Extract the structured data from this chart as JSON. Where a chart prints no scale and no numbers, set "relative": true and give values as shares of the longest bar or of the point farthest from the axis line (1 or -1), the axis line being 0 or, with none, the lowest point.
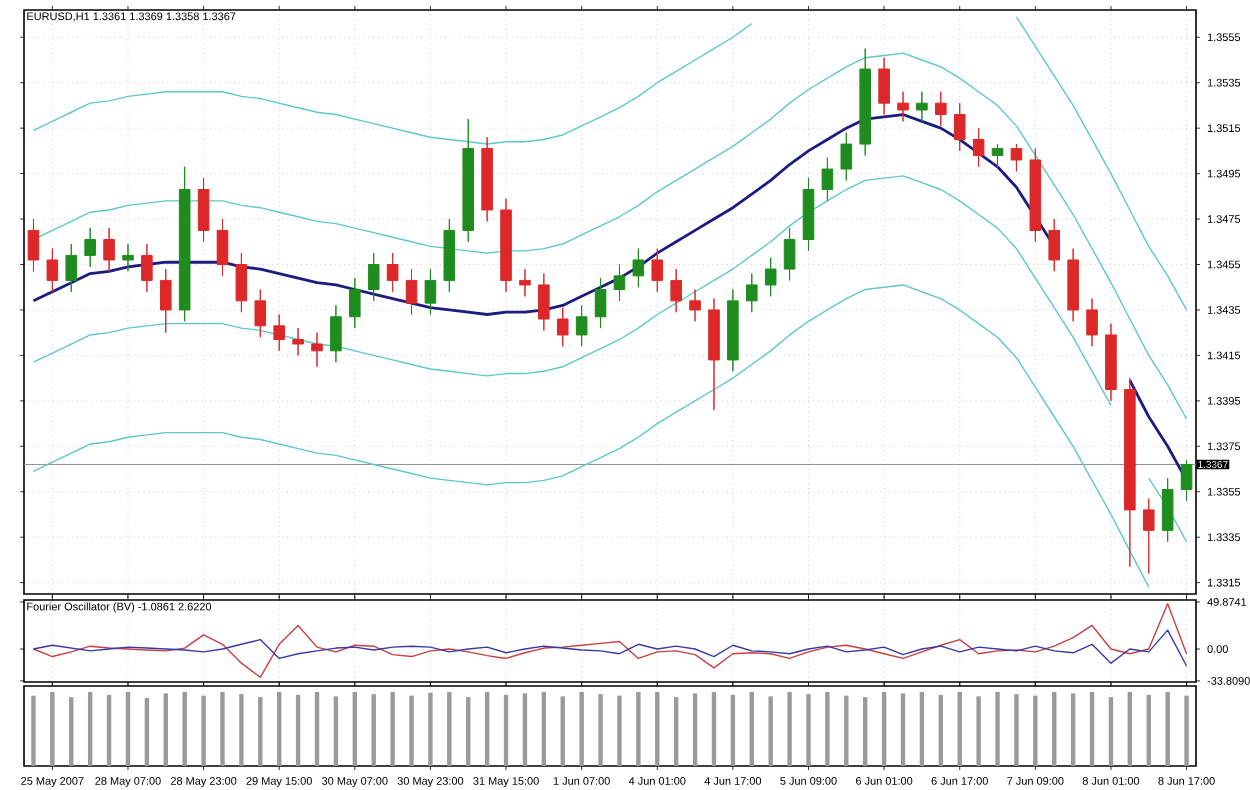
{
  "chart_data": [
    {
      "type": "candlestick",
      "title": "EURUSD,H1 1.3361 1.3369 1.3358 1.3367",
      "categories": [
        null,
        null,
        null,
        null,
        null,
        null,
        null,
        null,
        null,
        null,
        null,
        null,
        null,
        null,
        null,
        null,
        null,
        null,
        null,
        null,
        null,
        null,
        null,
        null,
        null,
        null,
        null,
        null,
        null,
        null,
        null,
        null,
        null,
        null,
        null,
        null,
        null,
        null,
        null,
        null,
        null,
        null,
        null,
        null,
        null,
        null,
        null,
        null,
        null,
        null,
        null,
        null,
        null,
        null,
        null,
        null,
        null,
        null,
        null,
        null,
        null,
        null
      ],
      "ohlc": [
        [
          1.347,
          1.3475,
          1.3452,
          1.3457
        ],
        [
          1.3457,
          1.3462,
          1.3443,
          1.3448
        ],
        [
          1.3448,
          1.3464,
          1.3443,
          1.3459
        ],
        [
          1.3459,
          1.3471,
          1.3454,
          1.3466
        ],
        [
          1.3466,
          1.3471,
          1.3452,
          1.3457
        ],
        [
          1.3457,
          1.3464,
          1.3452,
          1.3459
        ],
        [
          1.3459,
          1.3464,
          1.3443,
          1.3448
        ],
        [
          1.3448,
          1.3453,
          1.3425,
          1.3435
        ],
        [
          1.3435,
          1.3498,
          1.343,
          1.3488
        ],
        [
          1.3488,
          1.3493,
          1.3465,
          1.347
        ],
        [
          1.347,
          1.3475,
          1.345,
          1.3455
        ],
        [
          1.3455,
          1.346,
          1.3434,
          1.3439
        ],
        [
          1.3439,
          1.3444,
          1.3423,
          1.3428
        ],
        [
          1.3428,
          1.3433,
          1.3417,
          1.3422
        ],
        [
          1.3422,
          1.3427,
          1.3415,
          1.342
        ],
        [
          1.342,
          1.3425,
          1.341,
          1.3417
        ],
        [
          1.3417,
          1.3437,
          1.3412,
          1.3432
        ],
        [
          1.3432,
          1.3449,
          1.3427,
          1.3444
        ],
        [
          1.3444,
          1.346,
          1.3439,
          1.3455
        ],
        [
          1.3455,
          1.346,
          1.3443,
          1.3448
        ],
        [
          1.3448,
          1.3453,
          1.3433,
          1.3438
        ],
        [
          1.3438,
          1.3453,
          1.3433,
          1.3448
        ],
        [
          1.3448,
          1.3475,
          1.3443,
          1.347
        ],
        [
          1.347,
          1.3519,
          1.3465,
          1.3506
        ],
        [
          1.3506,
          1.3511,
          1.3474,
          1.3479
        ],
        [
          1.3479,
          1.3484,
          1.3443,
          1.3448
        ],
        [
          1.3448,
          1.3453,
          1.3441,
          1.3446
        ],
        [
          1.3446,
          1.3451,
          1.3426,
          1.3431
        ],
        [
          1.3431,
          1.3436,
          1.3419,
          1.3424
        ],
        [
          1.3424,
          1.3437,
          1.3419,
          1.3432
        ],
        [
          1.3432,
          1.3449,
          1.3427,
          1.3444
        ],
        [
          1.3444,
          1.3455,
          1.3439,
          1.345
        ],
        [
          1.345,
          1.3462,
          1.3445,
          1.3457
        ],
        [
          1.3457,
          1.3462,
          1.3443,
          1.3448
        ],
        [
          1.3448,
          1.3453,
          1.3434,
          1.3439
        ],
        [
          1.3439,
          1.3444,
          1.343,
          1.3435
        ],
        [
          1.3435,
          1.344,
          1.3391,
          1.3413
        ],
        [
          1.3413,
          1.3444,
          1.3408,
          1.3439
        ],
        [
          1.3439,
          1.3451,
          1.3434,
          1.3446
        ],
        [
          1.3446,
          1.3458,
          1.3441,
          1.3453
        ],
        [
          1.3453,
          1.3471,
          1.3448,
          1.3466
        ],
        [
          1.3466,
          1.3493,
          1.3461,
          1.3488
        ],
        [
          1.3488,
          1.3502,
          1.3483,
          1.3497
        ],
        [
          1.3497,
          1.3513,
          1.3492,
          1.3508
        ],
        [
          1.3508,
          1.355,
          1.3503,
          1.3541
        ],
        [
          1.3541,
          1.3546,
          1.3521,
          1.3526
        ],
        [
          1.3526,
          1.3531,
          1.3518,
          1.3523
        ],
        [
          1.3523,
          1.3531,
          1.3518,
          1.3526
        ],
        [
          1.3526,
          1.3531,
          1.3516,
          1.3521
        ],
        [
          1.3521,
          1.3526,
          1.3505,
          1.351
        ],
        [
          1.351,
          1.3515,
          1.3498,
          1.3503
        ],
        [
          1.3503,
          1.3508,
          1.3498,
          1.3506
        ],
        [
          1.3506,
          1.3508,
          1.3496,
          1.3501
        ],
        [
          1.3501,
          1.3506,
          1.3465,
          1.347
        ],
        [
          1.347,
          1.3475,
          1.3452,
          1.3457
        ],
        [
          1.3457,
          1.3462,
          1.343,
          1.3435
        ],
        [
          1.3435,
          1.344,
          1.3419,
          1.3424
        ],
        [
          1.3424,
          1.3429,
          1.3395,
          1.34
        ],
        [
          1.34,
          1.3405,
          1.3322,
          1.3347
        ],
        [
          1.3347,
          1.3352,
          1.3319,
          1.3338
        ],
        [
          1.3338,
          1.3361,
          1.3333,
          1.3356
        ],
        [
          1.3356,
          1.3369,
          1.3351,
          1.3367
        ]
      ],
      "series": [
        {
          "type": "line",
          "color": "#5ec8c8",
          "values": [
            1.3514,
            1.3518,
            1.3522,
            1.3526,
            1.3527,
            1.3529,
            1.353,
            1.3531,
            1.3531,
            1.3531,
            1.3531,
            1.3529,
            1.3528,
            1.3526,
            1.3524,
            1.3522,
            1.3521,
            1.3519,
            1.3517,
            1.3515,
            1.3513,
            1.3511,
            1.351,
            1.3509,
            1.3508,
            1.3509,
            1.3509,
            1.351,
            1.3512,
            1.3516,
            1.352,
            1.3524,
            1.3529,
            1.3535,
            1.354,
            1.3545,
            1.355,
            1.3555,
            1.3561,
            null,
            null,
            null,
            null,
            null,
            null,
            null,
            null,
            null,
            null,
            null,
            null,
            null,
            1.3564,
            1.3551,
            1.3538,
            1.3525,
            1.351,
            1.3495,
            1.3479,
            1.3463,
            1.345,
            1.3435
          ]
        },
        {
          "type": "line",
          "color": "#5ec8c8",
          "values": [
            1.3466,
            1.347,
            1.3474,
            1.3478,
            1.3479,
            1.3481,
            1.3482,
            1.3483,
            1.3483,
            1.3483,
            1.3483,
            1.3481,
            1.348,
            1.3478,
            1.3476,
            1.3474,
            1.3473,
            1.3471,
            1.3469,
            1.3467,
            1.3465,
            1.3463,
            1.3462,
            1.3461,
            1.346,
            1.3461,
            1.3461,
            1.3462,
            1.3464,
            1.3468,
            1.3472,
            1.3476,
            1.3481,
            1.3487,
            1.3492,
            1.3497,
            1.3502,
            1.3507,
            1.3513,
            1.3519,
            1.3526,
            1.3532,
            1.3537,
            1.3542,
            1.3546,
            1.3547,
            1.3548,
            1.3545,
            1.3542,
            1.3537,
            1.3531,
            1.3525,
            1.3516,
            1.3503,
            1.349,
            1.3477,
            1.3462,
            1.3447,
            1.3431,
            1.3415,
            1.3402,
            1.3387
          ]
        },
        {
          "type": "line",
          "color": "#5ec8c8",
          "values": [
            1.3412,
            1.3416,
            1.342,
            1.3424,
            1.3425,
            1.3427,
            1.3428,
            1.3429,
            1.3429,
            1.3429,
            1.3429,
            1.3427,
            1.3426,
            1.3424,
            1.3422,
            1.342,
            1.3419,
            1.3417,
            1.3415,
            1.3413,
            1.3411,
            1.3409,
            1.3408,
            1.3407,
            1.3406,
            1.3407,
            1.3407,
            1.3408,
            1.341,
            1.3414,
            1.3418,
            1.3422,
            1.3427,
            1.3433,
            1.3438,
            1.3443,
            1.3448,
            1.3453,
            1.3459,
            1.3465,
            1.3472,
            1.3478,
            1.3483,
            1.3488,
            1.3492,
            1.3493,
            1.3494,
            1.3491,
            1.3488,
            1.3483,
            1.3477,
            1.3471,
            1.3462,
            1.3449,
            1.3436,
            1.3423,
            1.3408,
            1.3393,
            null,
            1.3361,
            1.3348,
            1.3333
          ]
        },
        {
          "type": "line",
          "color": "#5ec8c8",
          "values": [
            1.3364,
            1.3368,
            1.3372,
            1.3376,
            1.3377,
            1.3379,
            1.338,
            1.3381,
            1.3381,
            1.3381,
            1.3381,
            1.3379,
            1.3378,
            1.3376,
            1.3374,
            1.3372,
            1.3371,
            1.3369,
            1.3367,
            1.3365,
            1.3363,
            1.3361,
            1.336,
            1.3359,
            1.3358,
            1.3359,
            1.3359,
            1.336,
            1.3362,
            1.3366,
            1.337,
            1.3374,
            1.3379,
            1.3385,
            1.339,
            1.3395,
            1.34,
            1.3405,
            1.3411,
            1.3417,
            1.3424,
            1.343,
            1.3435,
            1.344,
            1.3444,
            1.3445,
            1.3446,
            1.3443,
            1.344,
            1.3435,
            1.3429,
            1.3423,
            1.3414,
            1.3401,
            1.3388,
            1.3375,
            1.336,
            1.3345,
            1.3329,
            1.3313,
            null,
            null
          ]
        },
        {
          "type": "line",
          "color": "#1c1c80",
          "values": [
            1.3439,
            1.3443,
            1.3447,
            1.3451,
            1.3452,
            1.3454,
            1.3455,
            1.3456,
            1.3456,
            1.3456,
            1.3456,
            1.3454,
            1.3453,
            1.3451,
            1.3449,
            1.3447,
            1.3446,
            1.3444,
            1.3442,
            1.344,
            1.3438,
            1.3436,
            1.3435,
            1.3434,
            1.3433,
            1.3434,
            1.3434,
            1.3435,
            1.3437,
            1.3441,
            1.3445,
            1.3449,
            1.3454,
            1.346,
            1.3465,
            1.347,
            1.3475,
            1.348,
            1.3486,
            1.3492,
            1.3499,
            1.3505,
            1.351,
            1.3515,
            1.3519,
            1.352,
            1.3521,
            1.3518,
            1.3515,
            1.351,
            1.3504,
            1.3498,
            1.3489,
            1.3476,
            1.3463,
            null,
            null,
            null,
            1.3404,
            1.3388,
            1.3375,
            1.336
          ]
        }
      ],
      "ylim": [
        1.331,
        1.3567
      ],
      "yticks": [
        1.3315,
        1.3335,
        1.3355,
        1.3375,
        1.3395,
        1.3415,
        1.3435,
        1.3455,
        1.3475,
        1.3495,
        1.3515,
        1.3535,
        1.3555
      ],
      "ref_lines": [
        {
          "axis": "y",
          "value": 1.3367,
          "label": "1.3367",
          "color": "#909090"
        }
      ],
      "grid": true,
      "tick_labels": "y"
    },
    {
      "type": "line",
      "title": "Fourier Oscillator (BV) -1.0861 2.6220",
      "categories": [
        null,
        null,
        null,
        null,
        null,
        null,
        null,
        null,
        null,
        null,
        null,
        null,
        null,
        null,
        null,
        null,
        null,
        null,
        null,
        null,
        null,
        null,
        null,
        null,
        null,
        null,
        null,
        null,
        null,
        null,
        null,
        null,
        null,
        null,
        null,
        null,
        null,
        null,
        null,
        null,
        null,
        null,
        null,
        null,
        null,
        null,
        null,
        null,
        null,
        null,
        null,
        null,
        null,
        null,
        null,
        null,
        null,
        null,
        null,
        null,
        null,
        null
      ],
      "series": [
        {
          "color": "#c84040",
          "values": [
            0,
            -8,
            -3,
            3,
            1,
            0,
            -1,
            -2,
            1,
            15,
            5,
            -15,
            -30,
            5,
            25,
            2,
            -3,
            4,
            3,
            -6,
            -8,
            -2,
            0,
            -3,
            -7,
            -10,
            -4,
            1,
            2,
            4,
            6,
            8,
            -10,
            -3,
            -2,
            -6,
            -20,
            -5,
            -4,
            -5,
            -10,
            -3,
            2,
            4,
            0,
            -5,
            -10,
            -3,
            4,
            10,
            -5,
            -2,
            -1,
            -3,
            3,
            12,
            25,
            0,
            -5,
            0,
            48,
            -5
          ]
        },
        {
          "color": "#3838a8",
          "values": [
            0,
            4,
            1,
            -2,
            0,
            2,
            1,
            0,
            -1,
            -3,
            0,
            5,
            10,
            -10,
            -5,
            -2,
            1,
            2,
            -1,
            2,
            3,
            2,
            -3,
            0,
            2,
            -4,
            0,
            3,
            1,
            -1,
            -2,
            -5,
            5,
            0,
            3,
            0,
            -8,
            4,
            -2,
            -3,
            -5,
            0,
            3,
            -3,
            -1,
            2,
            -6,
            0,
            3,
            -3,
            2,
            0,
            -2,
            3,
            -2,
            -4,
            5,
            -15,
            0,
            -3,
            20,
            -18
          ]
        }
      ],
      "ylim": [
        -35,
        52
      ],
      "yticks": [
        49.8741,
        {
          "value": 0,
          "label": "0.00"
        },
        {
          "value": -33.809,
          "label": "-33.8090"
        }
      ],
      "grid": "x",
      "tick_labels": "y"
    },
    {
      "type": "bar",
      "relative": true,
      "color": "#9a9a9a",
      "categories": [
        null,
        "25 May 2007",
        null,
        null,
        null,
        "28 May 07:00",
        null,
        null,
        null,
        "28 May 23:00",
        null,
        null,
        null,
        "29 May 15:00",
        null,
        null,
        null,
        "30 May 07:00",
        null,
        null,
        null,
        "30 May 23:00",
        null,
        null,
        null,
        "31 May 15:00",
        null,
        null,
        null,
        "1 Jun 07:00",
        null,
        null,
        null,
        "4 Jun 01:00",
        null,
        null,
        null,
        "4 Jun 17:00",
        null,
        null,
        null,
        "5 Jun 09:00",
        null,
        null,
        null,
        "6 Jun 01:00",
        null,
        null,
        null,
        "6 Jun 17:00",
        null,
        null,
        null,
        "7 Jun 09:00",
        null,
        null,
        null,
        "8 Jun 01:00",
        null,
        null,
        null,
        "8 Jun 17:00"
      ],
      "values": [
        0.95,
        1,
        0.93,
        1,
        0.96,
        1,
        0.92,
        0.98,
        1,
        0.95,
        1,
        0.97,
        0.93,
        1,
        0.96,
        1,
        0.94,
        1,
        0.97,
        1,
        0.95,
        0.99,
        1,
        0.93,
        1,
        0.96,
        0.98,
        1,
        0.94,
        1,
        0.97,
        0.95,
        1,
        1,
        0.93,
        0.98,
        1,
        0.96,
        1,
        0.94,
        1,
        0.97,
        1,
        0.95,
        0.93,
        1,
        0.98,
        1,
        0.96,
        1,
        0.94,
        1,
        0.97,
        0.95,
        1,
        0.98,
        1,
        0.93,
        1,
        0.96,
        1,
        0.95
      ],
      "grid": "x",
      "tick_labels": "x"
    }
  ]
}
